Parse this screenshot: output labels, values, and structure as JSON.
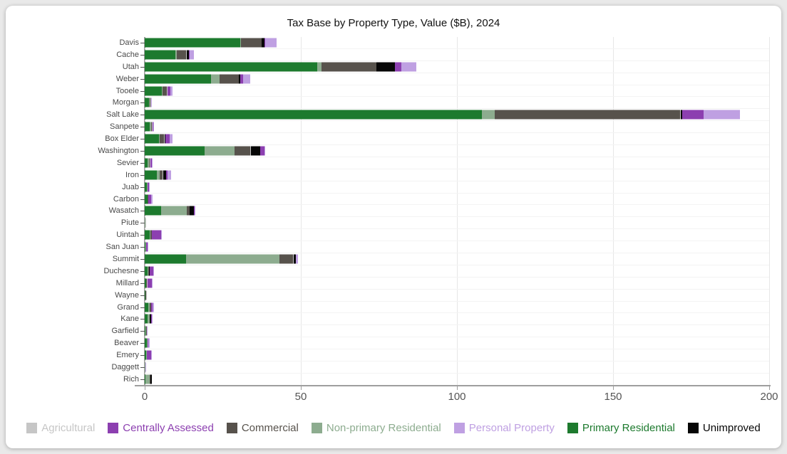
{
  "chart_data": {
    "type": "bar",
    "orientation": "horizontal",
    "stacked": true,
    "title": "Tax Base by Property Type, Value ($B), 2024",
    "xlabel": "",
    "ylabel": "",
    "xlim": [
      0,
      200
    ],
    "x_ticks": [
      0,
      50,
      100,
      150,
      200
    ],
    "grid": true,
    "categories": [
      "Davis",
      "Cache",
      "Utah",
      "Weber",
      "Tooele",
      "Morgan",
      "Salt Lake",
      "Sanpete",
      "Box Elder",
      "Washington",
      "Sevier",
      "Iron",
      "Juab",
      "Carbon",
      "Wasatch",
      "Piute",
      "Uintah",
      "San Juan",
      "Summit",
      "Duchesne",
      "Millard",
      "Wayne",
      "Grand",
      "Kane",
      "Garfield",
      "Beaver",
      "Emery",
      "Daggett",
      "Rich"
    ],
    "series": [
      {
        "name": "Primary Residential",
        "color": "#1d7a2e",
        "values": [
          30.5,
          9.9,
          55.3,
          21.2,
          5.5,
          1.4,
          108.0,
          1.6,
          4.5,
          19.2,
          1.0,
          3.8,
          0.7,
          0.8,
          5.3,
          0.1,
          1.5,
          0.3,
          13.2,
          0.9,
          0.4,
          0.2,
          1.1,
          1.0,
          0.3,
          0.7,
          0.5,
          0.1,
          0.3
        ]
      },
      {
        "name": "Non-primary Residential",
        "color": "#8dac8f",
        "values": [
          0.4,
          0.3,
          1.3,
          2.7,
          0.2,
          0.2,
          4.0,
          0.5,
          0.2,
          9.6,
          0.4,
          1.0,
          0.1,
          0.2,
          8.2,
          0.05,
          0.4,
          0.1,
          29.9,
          0.2,
          0.1,
          0.1,
          0.5,
          0.5,
          0.2,
          0.1,
          0.1,
          0.1,
          1.4
        ]
      },
      {
        "name": "Commercial",
        "color": "#57524c",
        "values": [
          6.5,
          3.1,
          17.5,
          6.2,
          1.4,
          0.3,
          59.5,
          0.2,
          1.5,
          5.1,
          0.2,
          1.0,
          0.1,
          0.2,
          0.9,
          0.0,
          0.3,
          0.1,
          4.5,
          0.2,
          0.1,
          0.05,
          0.4,
          0.2,
          0.1,
          0.05,
          0.05,
          0.0,
          0.05
        ]
      },
      {
        "name": "Agricultural",
        "color": "#c6c6c6",
        "values": [
          0.1,
          0.2,
          0.1,
          0.1,
          0.1,
          0.05,
          0.1,
          0.3,
          0.2,
          0.1,
          0.2,
          0.1,
          0.1,
          0.05,
          0.1,
          0.05,
          0.1,
          0.05,
          0.1,
          0.1,
          0.2,
          0.05,
          0.0,
          0.0,
          0.05,
          0.05,
          0.05,
          0.0,
          0.05
        ]
      },
      {
        "name": "Unimproved",
        "color": "#060606",
        "values": [
          0.9,
          0.6,
          6.0,
          0.4,
          0.2,
          0.1,
          0.5,
          0.0,
          0.3,
          3.1,
          0.0,
          0.9,
          0.0,
          0.0,
          1.3,
          0.0,
          0.0,
          0.0,
          0.6,
          0.1,
          0.0,
          0.0,
          0.1,
          0.4,
          0.05,
          0.0,
          0.0,
          0.0,
          0.4
        ]
      },
      {
        "name": "Centrally Assessed",
        "color": "#8c3fb0",
        "values": [
          0.3,
          0.4,
          2.0,
          0.9,
          0.9,
          0.1,
          7.0,
          0.1,
          1.3,
          1.2,
          0.4,
          0.5,
          0.4,
          0.9,
          0.1,
          0.0,
          2.9,
          0.4,
          0.1,
          1.3,
          1.5,
          0.0,
          0.5,
          0.1,
          0.0,
          0.3,
          1.4,
          0.05,
          0.0
        ]
      },
      {
        "name": "Personal Property",
        "color": "#bfa0e2",
        "values": [
          3.5,
          1.3,
          4.7,
          2.4,
          0.7,
          0.1,
          11.5,
          0.2,
          0.9,
          0.4,
          0.1,
          1.2,
          0.1,
          0.3,
          0.1,
          0.0,
          0.1,
          0.1,
          0.6,
          0.1,
          0.2,
          0.0,
          0.3,
          0.1,
          0.05,
          0.5,
          0.15,
          0.05,
          0.0
        ]
      }
    ],
    "legend": {
      "position": "bottom",
      "order": [
        "Agricultural",
        "Centrally Assessed",
        "Commercial",
        "Non-primary Residential",
        "Personal Property",
        "Primary Residential",
        "Unimproved"
      ]
    }
  }
}
